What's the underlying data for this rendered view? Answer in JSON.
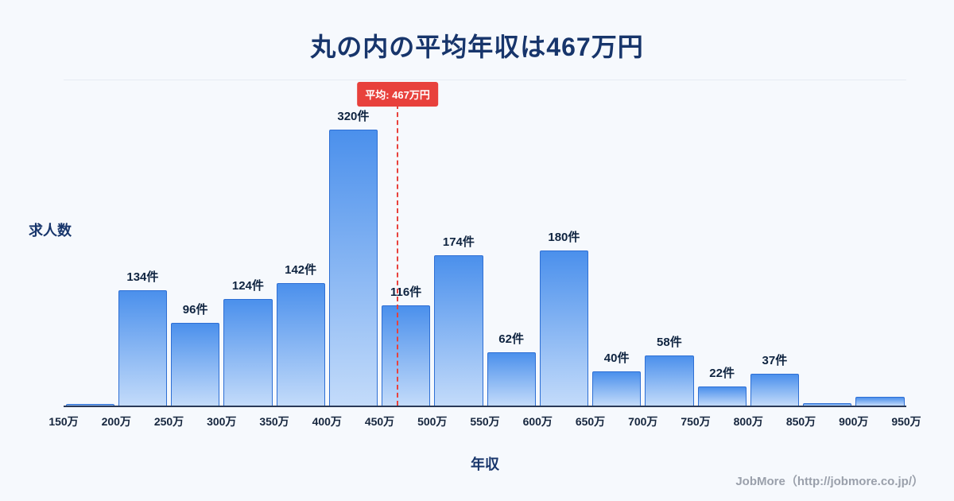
{
  "title": "丸の内の平均年収は467万円",
  "chart_data": {
    "type": "bar",
    "title": "丸の内の平均年収は467万円",
    "xlabel": "年収",
    "ylabel": "求人数",
    "tick_labels": [
      "150万",
      "200万",
      "250万",
      "300万",
      "350万",
      "400万",
      "450万",
      "500万",
      "550万",
      "600万",
      "650万",
      "700万",
      "750万",
      "800万",
      "850万",
      "900万",
      "950万"
    ],
    "x_range_man_yen": [
      150,
      950
    ],
    "values": [
      2,
      134,
      96,
      124,
      142,
      320,
      116,
      174,
      62,
      180,
      40,
      58,
      22,
      37,
      3,
      10
    ],
    "bar_labels": [
      "",
      "134件",
      "96件",
      "124件",
      "142件",
      "320件",
      "116件",
      "174件",
      "62件",
      "180件",
      "40件",
      "58件",
      "22件",
      "37件",
      "",
      ""
    ],
    "ylim": [
      0,
      380
    ],
    "grid": false,
    "legend": false,
    "average": {
      "value": 467,
      "label": "平均: 467万円"
    },
    "colors": {
      "title_text": "#17356b",
      "bar_top": "#4b90ec",
      "bar_bottom": "#c3dbfa",
      "bar_border": "#2e6fd4",
      "average_line": "#e8413c",
      "badge_bg": "#e8413c",
      "badge_text": "#ffffff"
    }
  },
  "footer": {
    "credit": "JobMore（http://jobmore.co.jp/）"
  }
}
